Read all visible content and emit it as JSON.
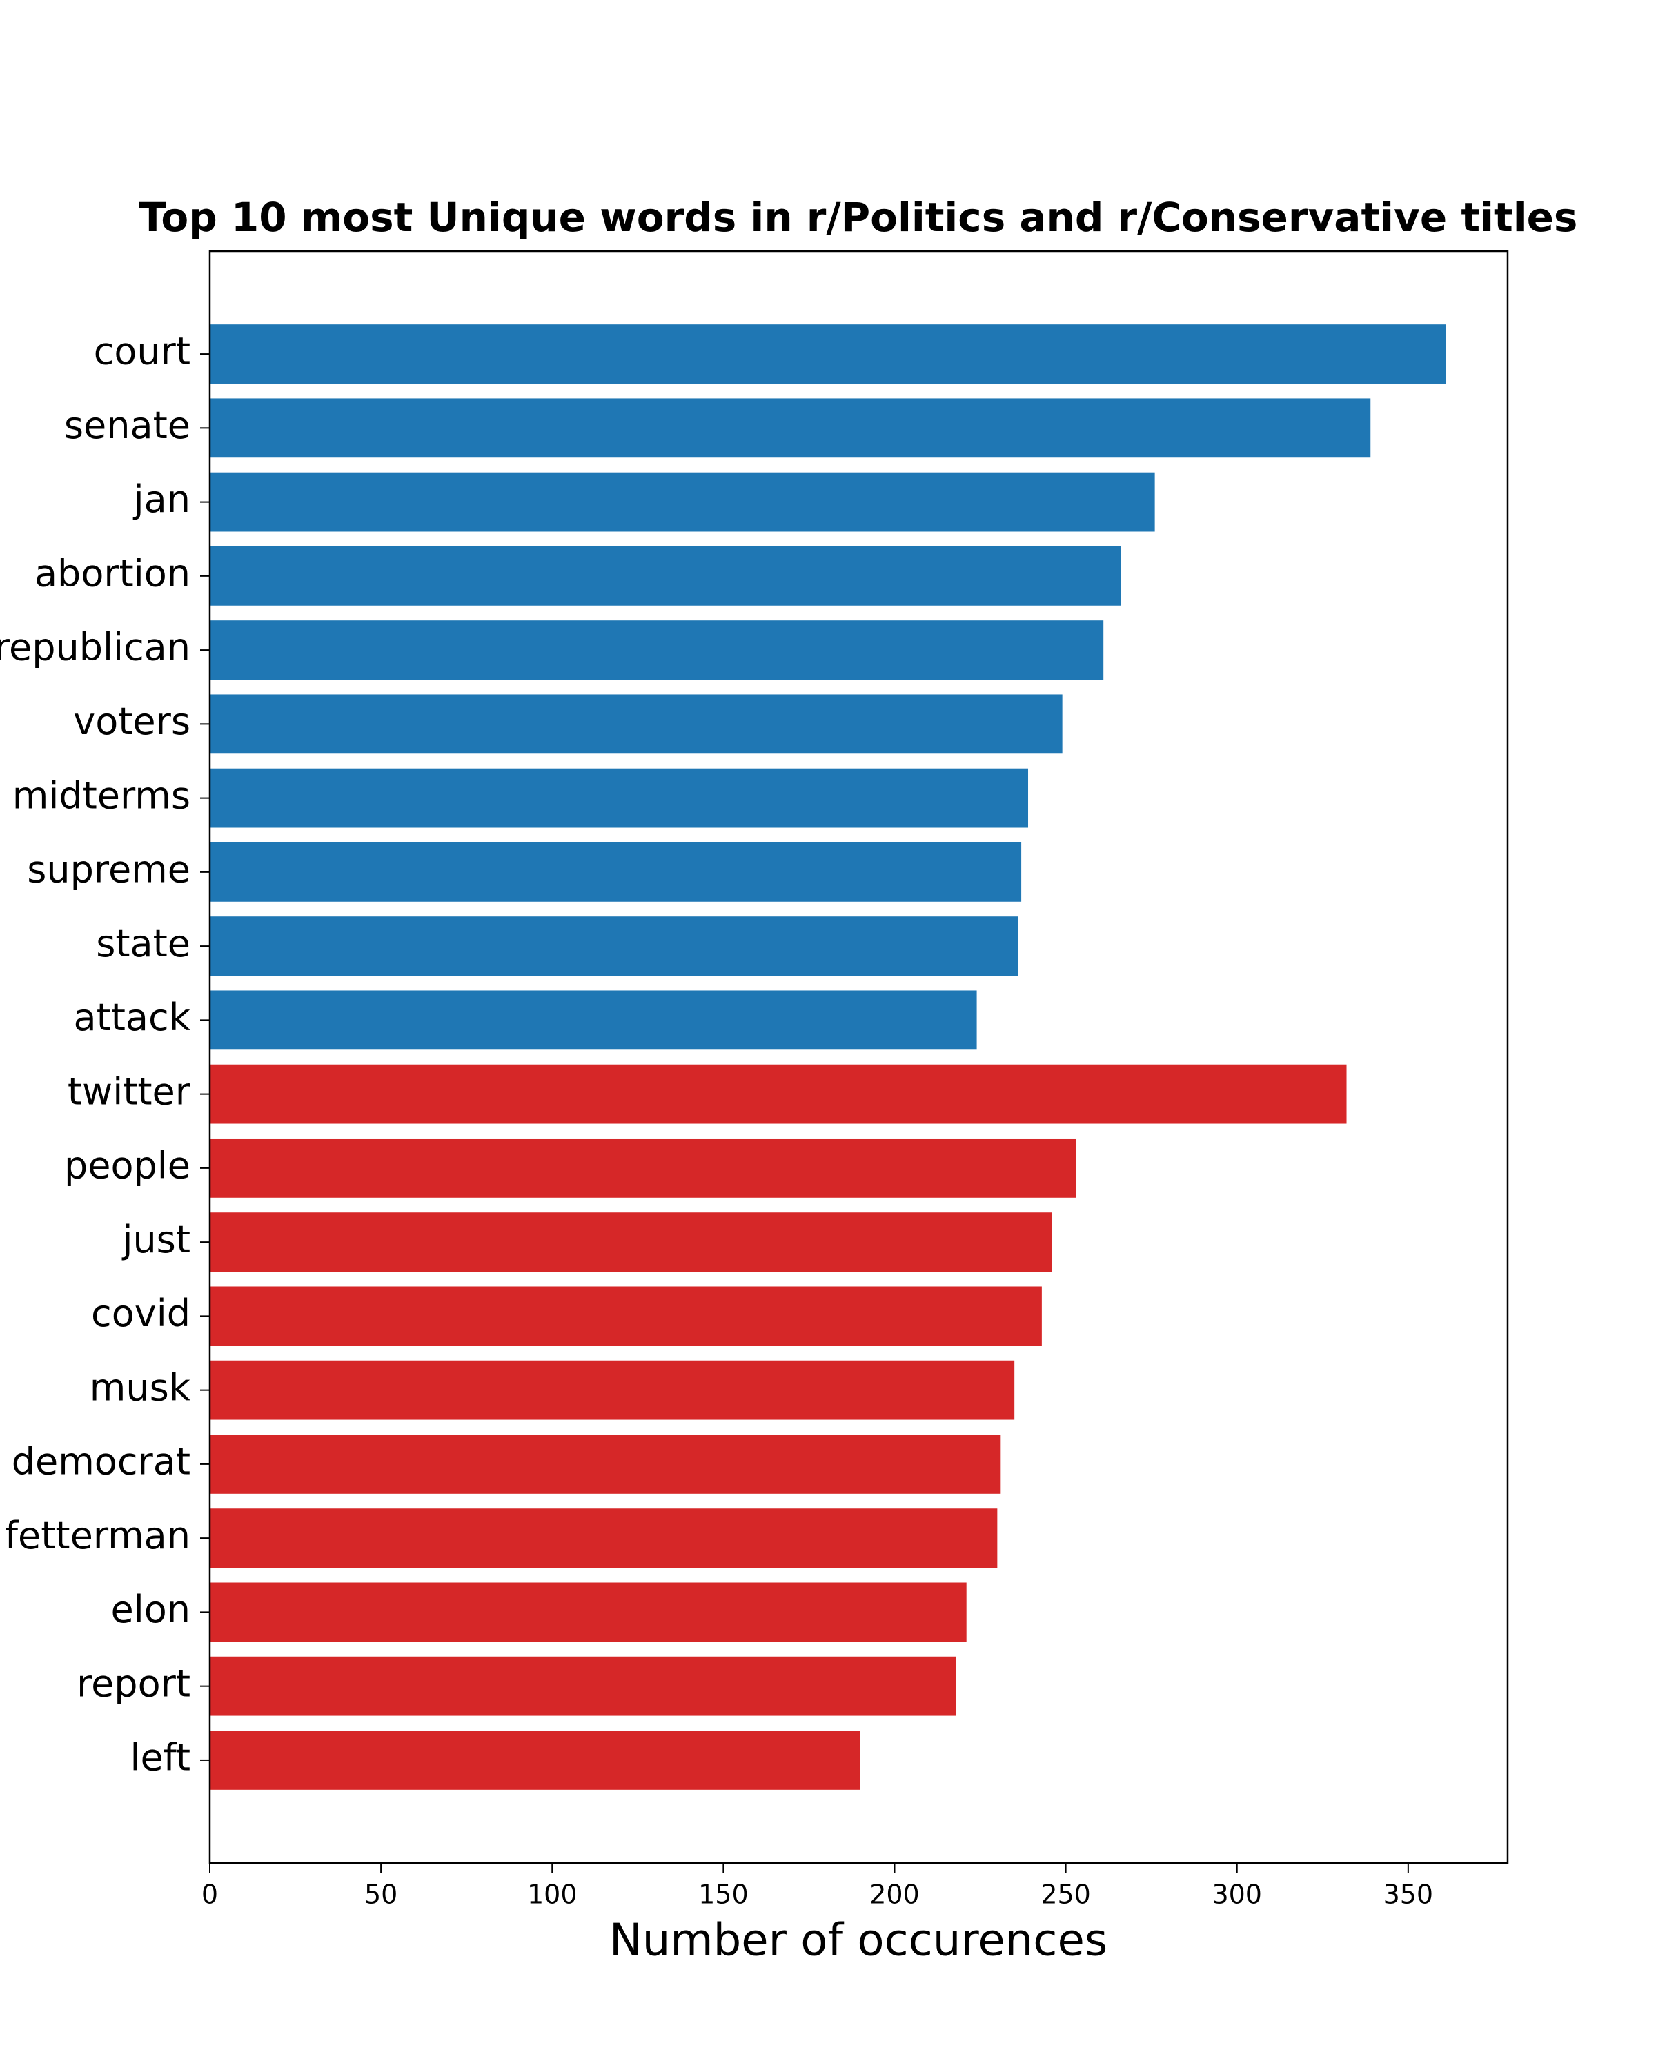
{
  "chart_data": {
    "type": "barh",
    "title": "Top 10 most Unique words in r/Politics and r/Conservative titles",
    "xlabel": "Number of occurences",
    "categories": [
      "court",
      "senate",
      "jan",
      "abortion",
      "republican",
      "voters",
      "midterms",
      "supreme",
      "state",
      "attack",
      "twitter",
      "people",
      "just",
      "covid",
      "musk",
      "democrat",
      "fetterman",
      "elon",
      "report",
      "left"
    ],
    "values": [
      361,
      339,
      276,
      266,
      261,
      249,
      239,
      237,
      236,
      224,
      332,
      253,
      246,
      243,
      235,
      231,
      230,
      221,
      218,
      190
    ],
    "colors": [
      "#1f77b4",
      "#1f77b4",
      "#1f77b4",
      "#1f77b4",
      "#1f77b4",
      "#1f77b4",
      "#1f77b4",
      "#1f77b4",
      "#1f77b4",
      "#1f77b4",
      "#d62728",
      "#d62728",
      "#d62728",
      "#d62728",
      "#d62728",
      "#d62728",
      "#d62728",
      "#d62728",
      "#d62728",
      "#d62728"
    ],
    "xlim": [
      0,
      379.05
    ],
    "xticks": [
      0,
      50,
      100,
      150,
      200,
      250,
      300,
      350
    ],
    "grid": false
  }
}
